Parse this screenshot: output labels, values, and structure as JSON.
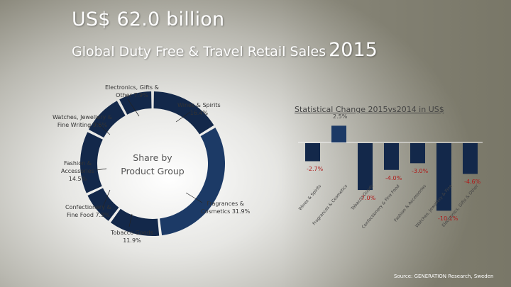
{
  "header": {
    "title": "US$ 62.0 billion",
    "subtitle": "Global Duty Free & Travel Retail Sales",
    "year": "2015"
  },
  "donut": {
    "center_line1": "Share by",
    "center_line2": "Product Group",
    "labels": [
      {
        "line1": "Wines & Spirits",
        "line2": "16.4%"
      },
      {
        "line1": "Fragrances &",
        "line2": "Cosmetics 31.9%"
      },
      {
        "line1": "Tobacco Goods",
        "line2": "11.9%"
      },
      {
        "line1": "Confectionery &",
        "line2": "Fine Food 7.9%"
      },
      {
        "line1": "Fashion &",
        "line2": "Accessories",
        "line3": "14.5%"
      },
      {
        "line1": "Watches, Jewellery &",
        "line2": "Fine Writing 9.6%"
      },
      {
        "line1": "Electronics, Gifts &",
        "line2": "Other 7.9%"
      }
    ]
  },
  "bars": {
    "title": "Statistical Change 2015vs2014 in US$",
    "value_labels": [
      "-2.7%",
      "2.5%",
      "-7.0%",
      "-4.0%",
      "-3.0%",
      "-10.1%",
      "-4.6%"
    ],
    "category_labels": [
      "Wines & Spirits",
      "Fragrances & Cosmetics",
      "Tobacco Goods",
      "Confectionery & Fine Food",
      "Fashion & Accessories",
      "Watches, Jewellery & Fine",
      "Electronics, Gifts & Other"
    ]
  },
  "footer": {
    "source": "Source: GENERATION Research, Sweden"
  },
  "colors": {
    "dark_navy": "#13284a",
    "highlight_navy": "#1c3a66",
    "negative_label": "#b01919"
  },
  "chart_data": [
    {
      "type": "pie",
      "title": "Share by Product Group",
      "categories": [
        "Wines & Spirits",
        "Fragrances & Cosmetics",
        "Tobacco Goods",
        "Confectionery & Fine Food",
        "Fashion & Accessories",
        "Watches, Jewellery & Fine Writing",
        "Electronics, Gifts & Other"
      ],
      "values": [
        16.4,
        31.9,
        11.9,
        7.9,
        14.5,
        9.6,
        7.9
      ],
      "unit": "%",
      "style": "donut"
    },
    {
      "type": "bar",
      "title": "Statistical Change 2015vs2014 in US$",
      "categories": [
        "Wines & Spirits",
        "Fragrances & Cosmetics",
        "Tobacco Goods",
        "Confectionery & Fine Food",
        "Fashion & Accessories",
        "Watches, Jewellery & Fine Writing",
        "Electronics, Gifts & Other"
      ],
      "values": [
        -2.7,
        2.5,
        -7.0,
        -4.0,
        -3.0,
        -10.1,
        -4.6
      ],
      "unit": "%",
      "xlabel": "",
      "ylabel": "",
      "ylim": [
        -11,
        3
      ],
      "grid": false
    }
  ]
}
